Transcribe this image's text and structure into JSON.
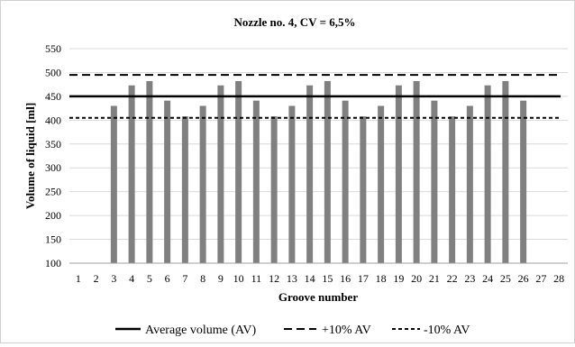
{
  "chart_data": {
    "type": "bar",
    "title": "Nozzle no. 4, CV = 6,5%",
    "xlabel": "Groove number",
    "ylabel": "Volume of liquid [ml]",
    "ylim": [
      100,
      550
    ],
    "yticks": [
      100,
      150,
      200,
      250,
      300,
      350,
      400,
      450,
      500,
      550
    ],
    "categories": [
      "1",
      "2",
      "3",
      "4",
      "5",
      "6",
      "7",
      "8",
      "9",
      "10",
      "11",
      "12",
      "13",
      "14",
      "15",
      "16",
      "17",
      "18",
      "19",
      "20",
      "21",
      "22",
      "23",
      "24",
      "25",
      "26",
      "27",
      "28"
    ],
    "values": [
      null,
      null,
      430,
      473,
      482,
      441,
      408,
      430,
      473,
      482,
      441,
      408,
      430,
      473,
      482,
      441,
      408,
      430,
      473,
      482,
      441,
      408,
      430,
      473,
      482,
      441,
      null,
      null
    ],
    "bar_color": "#808080",
    "grid": true,
    "legend_position": "bottom",
    "reference_lines": [
      {
        "name": "Average volume (AV)",
        "value": 450,
        "style": "solid"
      },
      {
        "name": "+10% AV",
        "value": 495,
        "style": "dashed"
      },
      {
        "name": "-10% AV",
        "value": 405,
        "style": "dotted-dash"
      }
    ],
    "legend": [
      {
        "label": "Average volume (AV)",
        "style": "solid"
      },
      {
        "label": "+10% AV",
        "style": "dashed"
      },
      {
        "label": "-10% AV",
        "style": "dotted-dash"
      }
    ]
  }
}
